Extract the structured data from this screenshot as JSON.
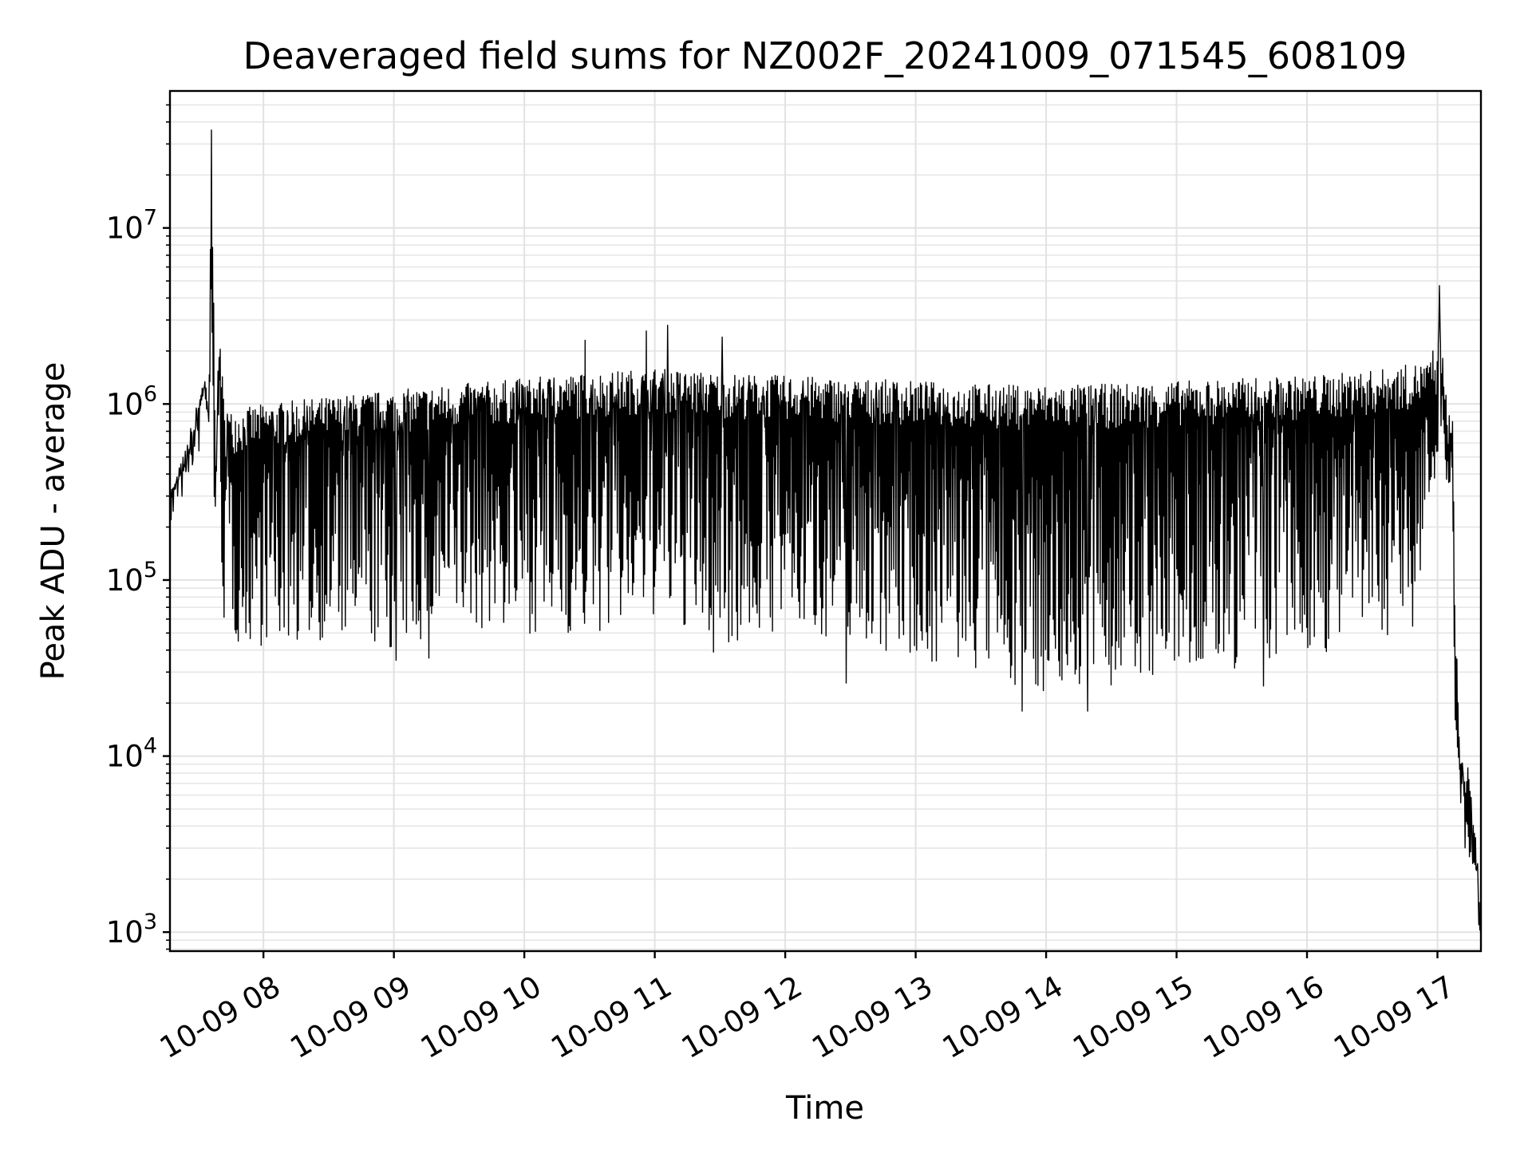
{
  "chart_data": {
    "type": "line",
    "title": "Deaveraged field sums for NZ002F_20241009_071545_608109",
    "xlabel": "Time",
    "ylabel": "Peak ADU - average",
    "xscale": "time",
    "yscale": "log",
    "xlim": [
      "2024-10-09 07:17",
      "2024-10-09 17:20"
    ],
    "ylim": [
      780,
      60000000
    ],
    "grid": true,
    "legend": "none",
    "line_color": "#000000",
    "x_ticks": [
      "10-09 08",
      "10-09 09",
      "10-09 10",
      "10-09 11",
      "10-09 12",
      "10-09 13",
      "10-09 14",
      "10-09 15",
      "10-09 16",
      "10-09 17"
    ],
    "x_tick_values": [
      "2024-10-09 08:00",
      "2024-10-09 09:00",
      "2024-10-09 10:00",
      "2024-10-09 11:00",
      "2024-10-09 12:00",
      "2024-10-09 13:00",
      "2024-10-09 14:00",
      "2024-10-09 15:00",
      "2024-10-09 16:00",
      "2024-10-09 17:00"
    ],
    "y_ticks": [
      {
        "value": 1000,
        "base": "10",
        "exp": "3"
      },
      {
        "value": 10000,
        "base": "10",
        "exp": "4"
      },
      {
        "value": 100000,
        "base": "10",
        "exp": "5"
      },
      {
        "value": 1000000,
        "base": "10",
        "exp": "6"
      },
      {
        "value": 10000000,
        "base": "10",
        "exp": "7"
      }
    ],
    "series": [
      {
        "x": [
          "2024-10-09 07:17",
          "2024-10-09 07:24",
          "2024-10-09 07:30",
          "2024-10-09 07:32",
          "2024-10-09 07:35",
          "2024-10-09 07:36",
          "2024-10-09 07:38",
          "2024-10-09 07:40",
          "2024-10-09 07:42",
          "2024-10-09 07:44",
          "2024-10-09 07:47",
          "2024-10-09 07:52",
          "2024-10-09 08:00",
          "2024-10-09 08:30",
          "2024-10-09 09:00",
          "2024-10-09 09:30",
          "2024-10-09 10:00",
          "2024-10-09 10:30",
          "2024-10-09 11:00",
          "2024-10-09 11:30",
          "2024-10-09 12:00",
          "2024-10-09 12:30",
          "2024-10-09 13:00",
          "2024-10-09 13:30",
          "2024-10-09 14:00",
          "2024-10-09 14:30",
          "2024-10-09 15:00",
          "2024-10-09 15:30",
          "2024-10-09 16:00",
          "2024-10-09 16:30",
          "2024-10-09 16:50",
          "2024-10-09 17:00",
          "2024-10-09 17:01",
          "2024-10-09 17:03",
          "2024-10-09 17:07",
          "2024-10-09 17:08",
          "2024-10-09 17:10",
          "2024-10-09 17:12",
          "2024-10-09 17:14",
          "2024-10-09 17:16",
          "2024-10-09 17:18",
          "2024-10-09 17:20"
        ],
        "high": [
          310000,
          560000,
          1100000,
          1600000,
          1100000,
          36000000,
          700000,
          2900000,
          900000,
          900000,
          950000,
          950000,
          1000000,
          1100000,
          1200000,
          1300000,
          1400000,
          1500000,
          1600000,
          1500000,
          1450000,
          1400000,
          1350000,
          1300000,
          1280000,
          1300000,
          1350000,
          1400000,
          1450000,
          1550000,
          1700000,
          1800000,
          4700000,
          1300000,
          800000,
          100000,
          14000,
          10000,
          9000,
          5000,
          3300,
          1200
        ],
        "low": [
          310000,
          400000,
          450000,
          1100000,
          700000,
          330000,
          210000,
          210000,
          46000,
          90000,
          42000,
          42000,
          42000,
          45000,
          38000,
          52000,
          50000,
          46000,
          60000,
          42000,
          50000,
          45000,
          35000,
          28000,
          22000,
          24000,
          27000,
          30000,
          36000,
          45000,
          55000,
          500000,
          800000,
          600000,
          100000,
          14000,
          9000,
          2100,
          2100,
          2000,
          2000,
          1200
        ],
        "peaks": [
          {
            "x": "2024-10-09 07:36",
            "y": 36000000
          },
          {
            "x": "2024-10-09 10:28",
            "y": 2300000
          },
          {
            "x": "2024-10-09 10:56",
            "y": 2600000
          },
          {
            "x": "2024-10-09 11:06",
            "y": 2800000
          },
          {
            "x": "2024-10-09 11:31",
            "y": 2400000
          },
          {
            "x": "2024-10-09 16:58",
            "y": 2000000
          },
          {
            "x": "2024-10-09 17:01",
            "y": 4700000
          }
        ],
        "dips": [
          {
            "x": "2024-10-09 09:01",
            "y": 35000
          },
          {
            "x": "2024-10-09 09:16",
            "y": 36000
          },
          {
            "x": "2024-10-09 11:27",
            "y": 39000
          },
          {
            "x": "2024-10-09 12:28",
            "y": 26000
          },
          {
            "x": "2024-10-09 13:49",
            "y": 18000
          },
          {
            "x": "2024-10-09 14:19",
            "y": 18000
          },
          {
            "x": "2024-10-09 15:40",
            "y": 25000
          }
        ]
      }
    ]
  }
}
